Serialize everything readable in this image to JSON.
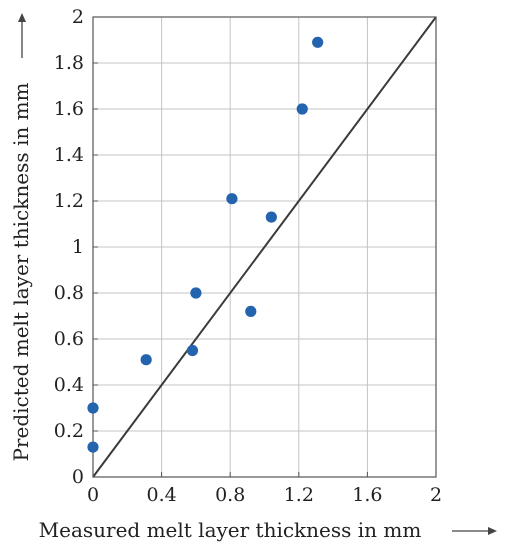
{
  "chart_data": {
    "type": "scatter",
    "xlabel": "Measured melt layer thickness in mm",
    "ylabel": "Predicted melt layer thickness in mm",
    "xlim": [
      0,
      2
    ],
    "ylim": [
      0,
      2
    ],
    "x_ticks": [
      0,
      0.4,
      0.8,
      1.2,
      1.6,
      2
    ],
    "x_tick_labels": [
      "0",
      "0.4",
      "0.8",
      "1.2",
      "1.6",
      "2"
    ],
    "y_ticks": [
      0,
      0.2,
      0.4,
      0.6,
      0.8,
      1,
      1.2,
      1.4,
      1.6,
      1.8,
      2
    ],
    "y_tick_labels": [
      "0",
      "0.2",
      "0.4",
      "0.6",
      "0.8",
      "1",
      "1.2",
      "1.4",
      "1.6",
      "1.8",
      "2"
    ],
    "grid": true,
    "reference_line": {
      "type": "identity",
      "from": [
        0,
        0
      ],
      "to": [
        2,
        2
      ]
    },
    "series": [
      {
        "points": [
          {
            "x": 0.0,
            "y": 0.13
          },
          {
            "x": 0.0,
            "y": 0.3
          },
          {
            "x": 0.31,
            "y": 0.51
          },
          {
            "x": 0.58,
            "y": 0.55
          },
          {
            "x": 0.6,
            "y": 0.8
          },
          {
            "x": 0.81,
            "y": 1.21
          },
          {
            "x": 0.92,
            "y": 0.72
          },
          {
            "x": 1.04,
            "y": 1.13
          },
          {
            "x": 1.22,
            "y": 1.6
          },
          {
            "x": 1.31,
            "y": 1.89
          }
        ]
      }
    ],
    "colors": {
      "points": "#2463ae",
      "grid": "#c4c4c4",
      "axes": "#555555",
      "reference_line": "#3a3a3a",
      "text": "#222222"
    }
  }
}
